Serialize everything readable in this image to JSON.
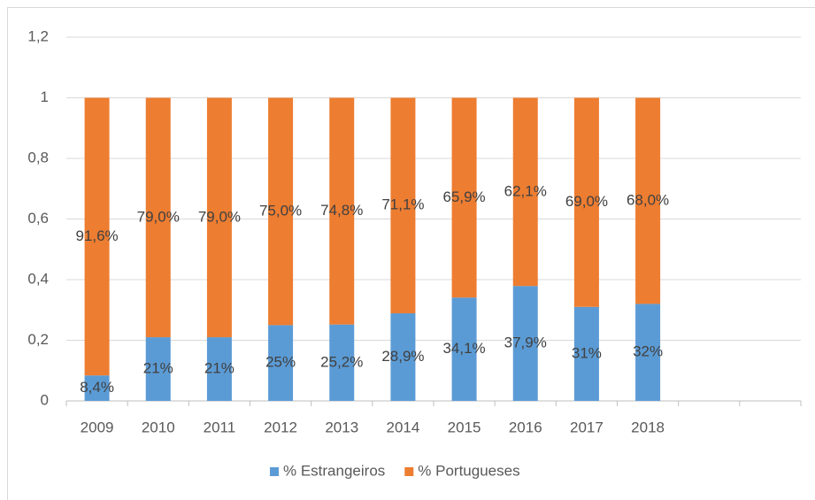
{
  "chart_data": {
    "type": "stacked_bar",
    "categories": [
      "2009",
      "2010",
      "2011",
      "2012",
      "2013",
      "2014",
      "2015",
      "2016",
      "2017",
      "2018",
      null,
      null
    ],
    "series": [
      {
        "name": "% Estrangeiros",
        "color": "#5b9bd5",
        "values": [
          0.084,
          0.21,
          0.21,
          0.25,
          0.252,
          0.289,
          0.341,
          0.379,
          0.31,
          0.32,
          null,
          null
        ],
        "value_labels": [
          "8,4%",
          "21%",
          "21%",
          "25%",
          "25,2%",
          "28,9%",
          "34,1%",
          "37,9%",
          "31%",
          "32%",
          null,
          null
        ]
      },
      {
        "name": "% Portugueses",
        "color": "#ed7d31",
        "values": [
          0.916,
          0.79,
          0.79,
          0.75,
          0.748,
          0.711,
          0.659,
          0.621,
          0.69,
          0.68,
          null,
          null
        ],
        "value_labels": [
          "91,6%",
          "79,0%",
          "79,0%",
          "75,0%",
          "74,8%",
          "71,1%",
          "65,9%",
          "62,1%",
          "69,0%",
          "68,0%",
          null,
          null
        ]
      }
    ],
    "ylim": [
      0,
      1.2
    ],
    "yticks": [
      0,
      {
        "value": 0.2,
        "label": "0,2"
      },
      {
        "value": 0.4,
        "label": "0,4"
      },
      {
        "value": 0.6,
        "label": "0,6"
      },
      {
        "value": 0.8,
        "label": "0,8"
      },
      1,
      {
        "value": 1.2,
        "label": "1,2"
      }
    ],
    "grid": true,
    "legend": "bottom"
  }
}
